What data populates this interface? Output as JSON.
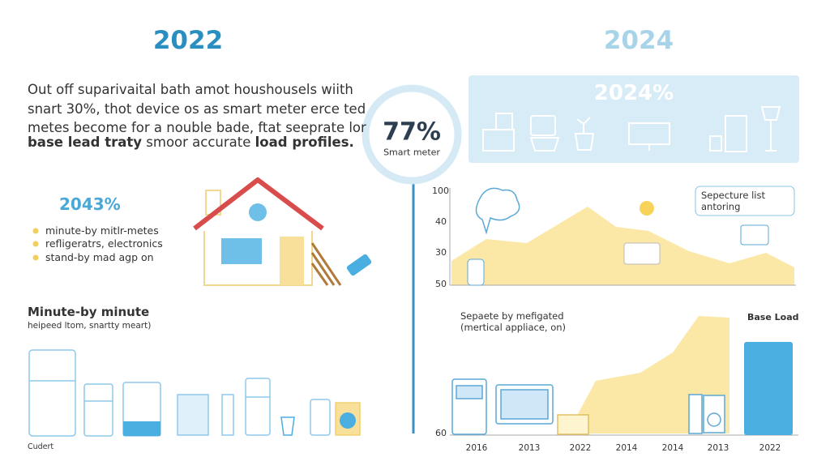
{
  "left": {
    "year": "2022",
    "paragraph": [
      "Out off suparivaital bath amot houshousels wiith",
      "snart 30%, thot device os as smart meter erce ted",
      "metes become for a nouble bade, ftat seeprate lor"
    ],
    "paragraph_last": [
      "base lead traty",
      " smoor accurate ",
      "load profiles."
    ],
    "stat": "2043%",
    "bullets": [
      "minute-by mitlr-metes",
      "refligeratrs, electronics",
      "stand-by mad agp on"
    ],
    "section_title": "Minute-by minute",
    "section_subtitle": "heipeed ltom, snartty meart)",
    "footer": "Cudert"
  },
  "center": {
    "value": "77%",
    "label": "Smart meter"
  },
  "right": {
    "year": "2024",
    "banner": "2024%",
    "top_chart": {
      "tick_labels": [
        "100",
        "40",
        "30",
        "50"
      ],
      "callout": [
        "Sepecture list",
        "antoring"
      ]
    },
    "bottom_chart": {
      "title": [
        "Sepaete by mefigated",
        "(mertical appliace, on)"
      ],
      "legend": "Base Load",
      "tick_label": "60",
      "x_labels": [
        "2016",
        "2013",
        "2022",
        "2014",
        "2014",
        "2013",
        "2022"
      ]
    }
  }
}
